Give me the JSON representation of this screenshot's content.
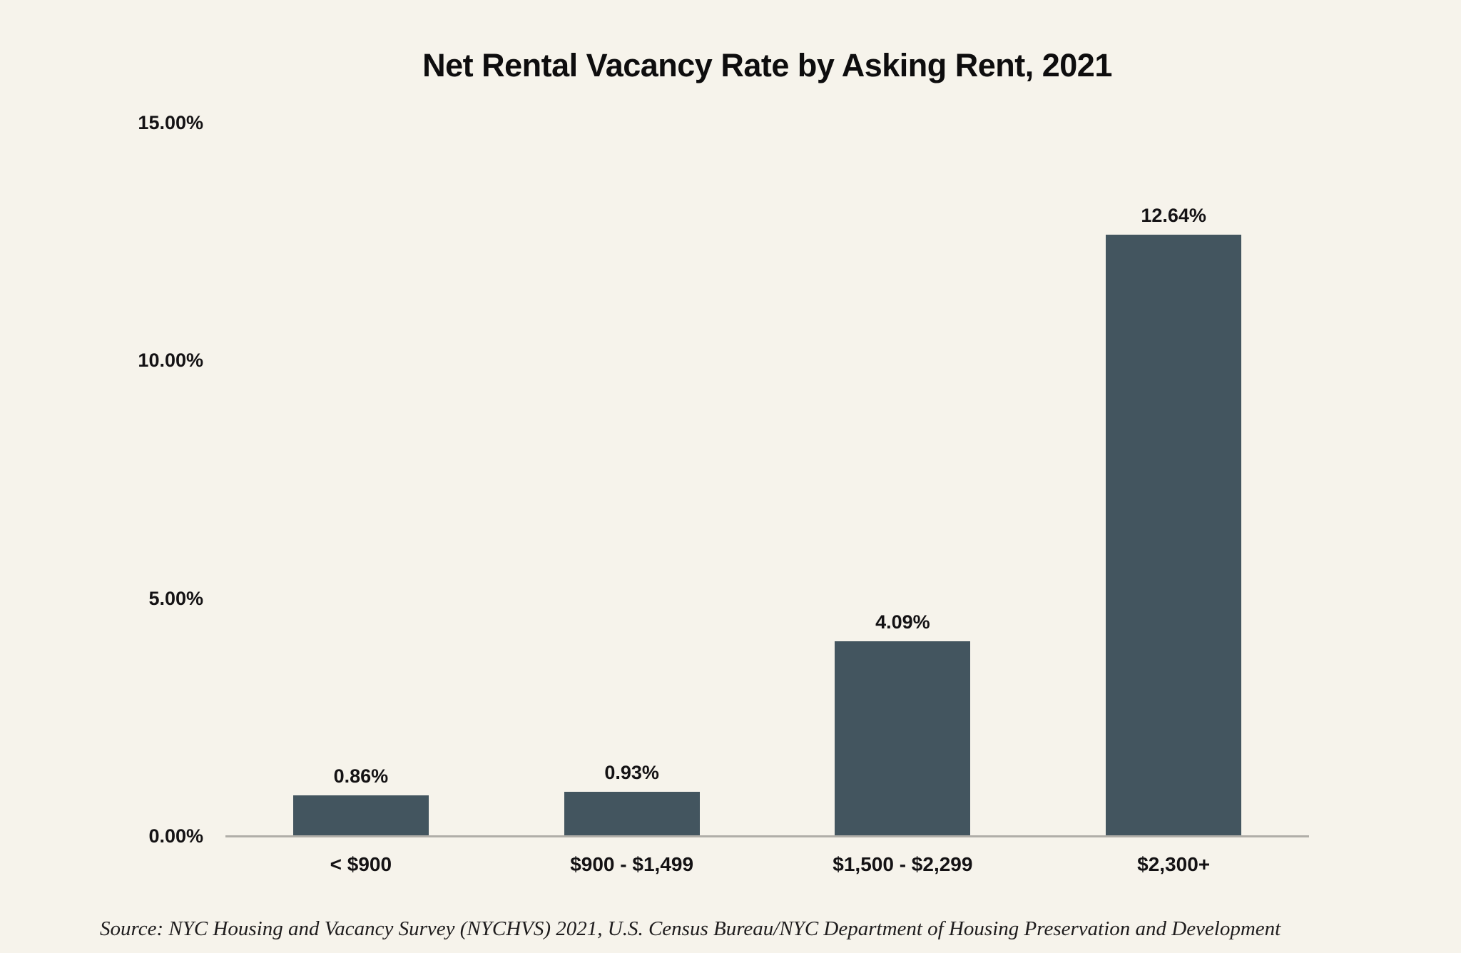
{
  "chart_data": {
    "type": "bar",
    "title": "Net Rental Vacancy Rate by Asking Rent, 2021",
    "categories": [
      "< $900",
      "$900 - $1,499",
      "$1,500 - $2,299",
      "$2,300+"
    ],
    "values": [
      0.86,
      0.93,
      4.09,
      12.64
    ],
    "value_labels": [
      "0.86%",
      "0.93%",
      "4.09%",
      "12.64%"
    ],
    "xlabel": "",
    "ylabel": "",
    "ylim": [
      0,
      15
    ],
    "y_ticks": [
      {
        "value": 0,
        "label": "0.00%"
      },
      {
        "value": 5,
        "label": "5.00%"
      },
      {
        "value": 10,
        "label": "10.00%"
      },
      {
        "value": 15,
        "label": "15.00%"
      }
    ],
    "grid": false,
    "legend": null,
    "source_note": "Source: NYC Housing and Vacancy Survey (NYCHVS) 2021, U.S. Census Bureau/NYC Department of Housing Preservation and Development"
  },
  "colors": {
    "background": "#f6f3eb",
    "bar": "#43555f",
    "axis_line": "#b0aea8",
    "text": "#141214"
  }
}
